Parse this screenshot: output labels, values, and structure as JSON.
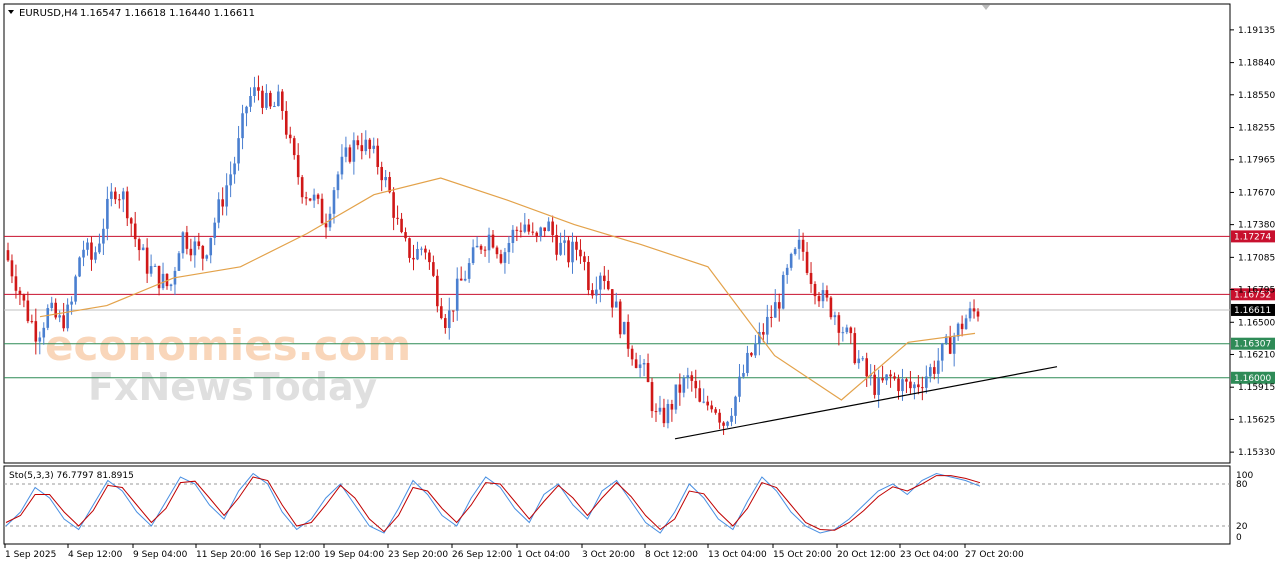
{
  "header": {
    "symbol": "EURUSD,H4",
    "ohlc": "1.16547 1.16618 1.16440 1.16611"
  },
  "watermark": {
    "line1": "economies.com",
    "line2": "FxNewsToday"
  },
  "indicator": {
    "label": "Sto(5,3,3) 76.7797 81.8915",
    "levels": [
      100,
      80,
      20,
      0
    ]
  },
  "colors": {
    "bull": "#4a7fd0",
    "bear": "#d01818",
    "ma": "#e3a24a",
    "resistance": "#c8102e",
    "support": "#2e8b57",
    "price_tag": "#000000",
    "trendline": "#000000",
    "stoch_main": "#4a90e2",
    "stoch_signal": "#c00000"
  },
  "chart_data": {
    "type": "candlestick",
    "symbol": "EURUSD",
    "timeframe": "H4",
    "grid": false,
    "ylim": [
      1.1525,
      1.1935
    ],
    "y_ticks": [
      "1.19135",
      "1.18840",
      "1.18550",
      "1.18255",
      "1.17965",
      "1.17670",
      "1.17380",
      "1.17085",
      "1.16795",
      "1.16500",
      "1.16210",
      "1.15915",
      "1.15625",
      "1.15330"
    ],
    "x_ticks": [
      "1 Sep 2025",
      "4 Sep 12:00",
      "9 Sep 04:00",
      "11 Sep 20:00",
      "16 Sep 12:00",
      "19 Sep 04:00",
      "23 Sep 20:00",
      "26 Sep 12:00",
      "1 Oct 04:00",
      "3 Oct 20:00",
      "8 Oct 12:00",
      "13 Oct 04:00",
      "15 Oct 20:00",
      "20 Oct 12:00",
      "23 Oct 04:00",
      "27 Oct 20:00"
    ],
    "horizontal_levels": [
      {
        "value": 1.17274,
        "label": "1.17274",
        "kind": "resistance"
      },
      {
        "value": 1.16752,
        "label": "1.16752",
        "kind": "resistance"
      },
      {
        "value": 1.16307,
        "label": "1.16307",
        "kind": "support"
      },
      {
        "value": 1.16,
        "label": "1.16000",
        "kind": "support"
      }
    ],
    "current_price": {
      "value": 1.16611,
      "label": "1.16611"
    },
    "trendline": {
      "from": {
        "x": "8 Oct 12:00",
        "y": 1.1545
      },
      "to": {
        "x": "27 Oct 20:00",
        "y": 1.161
      }
    },
    "price_path": [
      1.1715,
      1.169,
      1.166,
      1.164,
      1.166,
      1.165,
      1.166,
      1.172,
      1.1705,
      1.174,
      1.1772,
      1.176,
      1.172,
      1.17,
      1.169,
      1.168,
      1.173,
      1.172,
      1.171,
      1.174,
      1.177,
      1.18,
      1.185,
      1.186,
      1.184,
      1.185,
      1.18,
      1.177,
      1.176,
      1.174,
      1.178,
      1.18,
      1.1815,
      1.1805,
      1.179,
      1.176,
      1.172,
      1.171,
      1.172,
      1.168,
      1.165,
      1.168,
      1.17,
      1.172,
      1.173,
      1.171,
      1.173,
      1.174,
      1.172,
      1.174,
      1.172,
      1.171,
      1.172,
      1.168,
      1.17,
      1.167,
      1.164,
      1.162,
      1.16,
      1.156,
      1.157,
      1.159,
      1.16,
      1.157,
      1.158,
      1.156,
      1.158,
      1.161,
      1.163,
      1.165,
      1.167,
      1.17,
      1.172,
      1.169,
      1.167,
      1.166,
      1.164,
      1.162,
      1.16,
      1.159,
      1.16,
      1.1595,
      1.159,
      1.16,
      1.161,
      1.1625,
      1.164,
      1.1655,
      1.1661
    ],
    "ma_path": [
      1.1655,
      1.1665,
      1.169,
      1.17,
      1.173,
      1.1765,
      1.178,
      1.176,
      1.1738,
      1.172,
      1.17,
      1.162,
      1.158,
      1.1632,
      1.164
    ],
    "stochastic": {
      "params": "5,3,3",
      "main": 76.7797,
      "signal": 81.8915,
      "ylim": [
        0,
        100
      ],
      "levels": [
        80,
        20
      ],
      "main_path": [
        20,
        40,
        75,
        60,
        30,
        15,
        50,
        85,
        70,
        40,
        20,
        55,
        90,
        80,
        50,
        30,
        70,
        95,
        80,
        40,
        15,
        30,
        60,
        80,
        50,
        20,
        10,
        45,
        85,
        65,
        35,
        20,
        60,
        90,
        75,
        45,
        25,
        65,
        80,
        50,
        30,
        70,
        85,
        55,
        25,
        10,
        40,
        80,
        60,
        30,
        15,
        55,
        90,
        70,
        40,
        20,
        10,
        15,
        30,
        50,
        70,
        80,
        65,
        85,
        95,
        90,
        85,
        76.8
      ],
      "signal_path": [
        25,
        35,
        65,
        65,
        40,
        20,
        42,
        78,
        75,
        50,
        25,
        45,
        82,
        84,
        60,
        35,
        60,
        90,
        85,
        50,
        20,
        25,
        50,
        78,
        60,
        30,
        12,
        35,
        75,
        70,
        45,
        25,
        50,
        82,
        80,
        55,
        30,
        55,
        78,
        60,
        35,
        60,
        82,
        62,
        35,
        15,
        30,
        70,
        66,
        40,
        20,
        45,
        82,
        75,
        50,
        25,
        15,
        14,
        25,
        42,
        62,
        76,
        70,
        80,
        92,
        92,
        88,
        81.9
      ]
    }
  }
}
